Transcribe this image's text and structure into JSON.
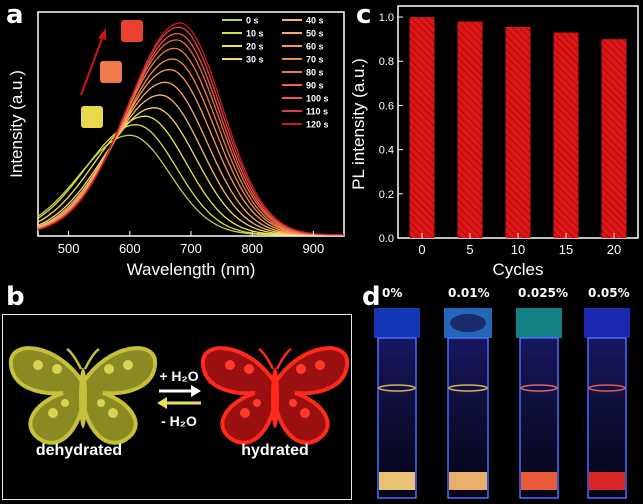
{
  "panels": {
    "a": "a",
    "b": "b",
    "c": "c",
    "d": "d"
  },
  "chart_data": [
    {
      "type": "line",
      "panel": "a",
      "xlabel": "Wavelength (nm)",
      "ylabel": "Intensity (a.u.)",
      "xlim": [
        450,
        950
      ],
      "xticks": [
        500,
        600,
        700,
        800,
        900
      ],
      "series": [
        {
          "name": "0 s",
          "color": "#b9d24a",
          "peak": 600,
          "amp": 0.47
        },
        {
          "name": "10 s",
          "color": "#d6dc45",
          "peak": 610,
          "amp": 0.52
        },
        {
          "name": "20 s",
          "color": "#f0e640",
          "peak": 625,
          "amp": 0.56
        },
        {
          "name": "30 s",
          "color": "#f3d86a",
          "peak": 640,
          "amp": 0.6
        },
        {
          "name": "40 s",
          "color": "#f6bb6a",
          "peak": 650,
          "amp": 0.66
        },
        {
          "name": "50 s",
          "color": "#f7ab63",
          "peak": 658,
          "amp": 0.72
        },
        {
          "name": "60 s",
          "color": "#f49b5a",
          "peak": 665,
          "amp": 0.78
        },
        {
          "name": "70 s",
          "color": "#f28c50",
          "peak": 670,
          "amp": 0.83
        },
        {
          "name": "80 s",
          "color": "#ef7c46",
          "peak": 673,
          "amp": 0.88
        },
        {
          "name": "90 s",
          "color": "#ec6a3e",
          "peak": 676,
          "amp": 0.92
        },
        {
          "name": "100 s",
          "color": "#e95757",
          "peak": 678,
          "amp": 0.95
        },
        {
          "name": "110 s",
          "color": "#e04040",
          "peak": 680,
          "amp": 0.98
        },
        {
          "name": "120 s",
          "color": "#c81e1e",
          "peak": 682,
          "amp": 1.0
        }
      ]
    },
    {
      "type": "bar",
      "panel": "c",
      "xlabel": "Cycles",
      "ylabel": "PL intensity (a.u.)",
      "categories": [
        "0",
        "5",
        "10",
        "15",
        "20"
      ],
      "values": [
        1.0,
        0.98,
        0.955,
        0.93,
        0.9
      ],
      "ylim": [
        0.0,
        1.05
      ],
      "yticks": [
        "0.0",
        "0.2",
        "0.4",
        "0.6",
        "0.8",
        "1.0"
      ],
      "color": "#e01515"
    }
  ],
  "butterfly": {
    "left_label": "dehydrated",
    "right_label": "hydrated",
    "arrow_top": "+ H₂O",
    "arrow_bottom": "- H₂O"
  },
  "cuvettes": {
    "labels": [
      "0%",
      "0.01%",
      "0.025%",
      "0.05%"
    ]
  }
}
